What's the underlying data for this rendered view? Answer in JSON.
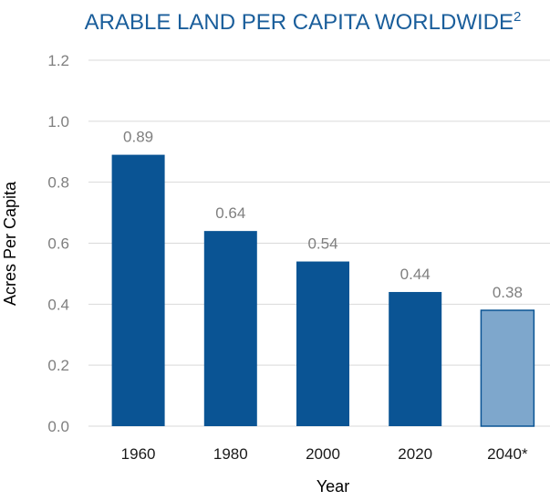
{
  "chart_data": {
    "type": "bar",
    "title": "ARABLE LAND PER CAPITA WORLDWIDE",
    "title_superscript": "2",
    "xlabel": "Year",
    "ylabel": "Acres Per Capita",
    "categories": [
      "1960",
      "1980",
      "2000",
      "2020",
      "2040*"
    ],
    "values": [
      0.89,
      0.64,
      0.54,
      0.44,
      0.38
    ],
    "value_labels": [
      "0.89",
      "0.64",
      "0.54",
      "0.44",
      "0.38"
    ],
    "ylim": [
      0,
      1.2
    ],
    "yticks": [
      "0.0",
      "0.2",
      "0.4",
      "0.6",
      "0.8",
      "1.0",
      "1.2"
    ],
    "grid": true,
    "projected": [
      false,
      false,
      false,
      false,
      true
    ],
    "colors": {
      "bar": "#0a5494",
      "bar_projected": "#7ea7cc",
      "bar_projected_border": "#0a5494",
      "title": "#1a5e9b",
      "grid": "#d9d9d9"
    }
  }
}
